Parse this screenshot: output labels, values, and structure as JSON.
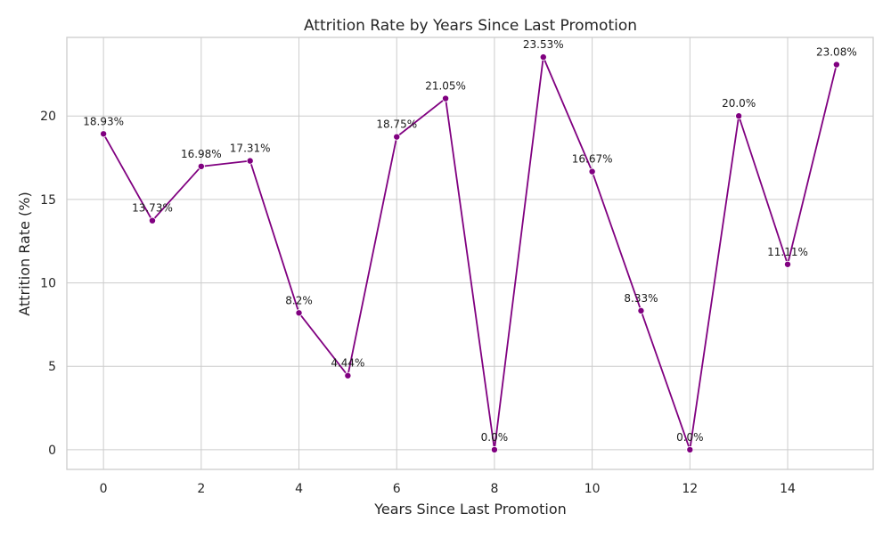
{
  "chart_data": {
    "type": "line",
    "title": "Attrition Rate by Years Since Last Promotion",
    "xlabel": "Years Since Last Promotion",
    "ylabel": "Attrition Rate (%)",
    "x": [
      0,
      1,
      2,
      3,
      4,
      5,
      6,
      7,
      8,
      9,
      10,
      11,
      12,
      13,
      14,
      15
    ],
    "series": [
      {
        "values": [
          18.93,
          13.73,
          16.98,
          17.31,
          8.2,
          4.44,
          18.75,
          21.05,
          0.0,
          23.53,
          16.67,
          8.33,
          0.0,
          20.0,
          11.11,
          23.08
        ],
        "labels": [
          "18.93%",
          "13.73%",
          "16.98%",
          "17.31%",
          "8.2%",
          "4.44%",
          "18.75%",
          "21.05%",
          "0.0%",
          "23.53%",
          "16.67%",
          "8.33%",
          "0.0%",
          "20.0%",
          "11.11%",
          "23.08%"
        ],
        "color": "#800080"
      }
    ],
    "xticks": [
      0,
      2,
      4,
      6,
      8,
      10,
      12,
      14
    ],
    "xtick_labels": [
      "0",
      "2",
      "4",
      "6",
      "8",
      "10",
      "12",
      "14"
    ],
    "yticks": [
      0,
      5,
      10,
      15,
      20
    ],
    "ytick_labels": [
      "0",
      "5",
      "10",
      "15",
      "20"
    ],
    "xlim": [
      -0.75,
      15.75
    ],
    "ylim": [
      -1.18,
      24.71
    ],
    "grid": true,
    "marker": "circle"
  }
}
